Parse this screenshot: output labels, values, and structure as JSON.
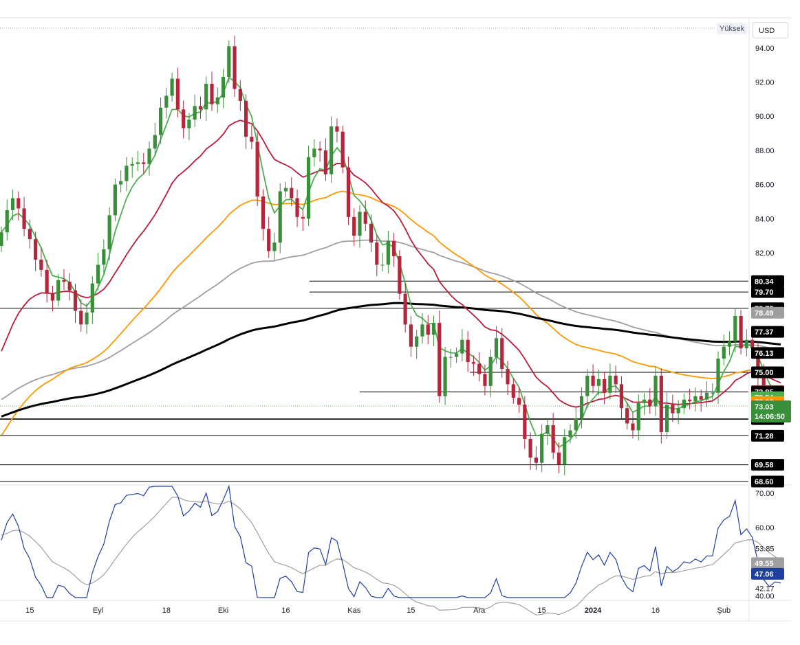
{
  "header": {
    "scale_label": "Yüksek",
    "currency": "USD"
  },
  "colors": {
    "up": "#3a8f3a",
    "down": "#b3263c",
    "ema5": "#4caf50",
    "ema20": "#b71c3c",
    "ema50": "#ff9800",
    "ema100": "#9e9e9e",
    "ema200": "#000000",
    "rsi": "#1e3fa0",
    "rsi_ma": "#a0a0a0"
  },
  "chart_data": [
    {
      "type": "candlestick",
      "title": "",
      "x_ticks": [
        {
          "label": "15",
          "index": 5
        },
        {
          "label": "Eyl",
          "index": 17
        },
        {
          "label": "18",
          "index": 29
        },
        {
          "label": "Eki",
          "index": 39
        },
        {
          "label": "16",
          "index": 50
        },
        {
          "label": "Kas",
          "index": 62
        },
        {
          "label": "15",
          "index": 72
        },
        {
          "label": "Ara",
          "index": 84
        },
        {
          "label": "15",
          "index": 95
        },
        {
          "label": "2024",
          "index": 104
        },
        {
          "label": "16",
          "index": 115
        },
        {
          "label": "Şub",
          "index": 127
        },
        {
          "label": "15",
          "index": 137
        }
      ],
      "y_ticks": [
        94,
        92,
        90,
        88,
        86,
        84,
        82,
        70
      ],
      "ylim": [
        68.4,
        95.2
      ],
      "series_close": [
        83.2,
        84.5,
        85.2,
        84.6,
        83.4,
        82.8,
        81.6,
        81.0,
        79.6,
        79.2,
        80.4,
        80.3,
        79.8,
        78.6,
        77.8,
        78.5,
        80.2,
        81.3,
        82.2,
        84.2,
        86.0,
        86.2,
        87.1,
        87.2,
        87.3,
        87.2,
        88.1,
        88.9,
        90.5,
        91.2,
        92.2,
        90.4,
        89.3,
        89.8,
        90.6,
        90.4,
        91.9,
        90.7,
        91.1,
        92.3,
        94.1,
        91.6,
        90.9,
        88.8,
        88.5,
        85.3,
        83.4,
        82.1,
        82.6,
        85.6,
        85.8,
        85.2,
        84.1,
        84.0,
        87.6,
        88.1,
        88.0,
        86.6,
        89.4,
        89.1,
        87.0,
        84.1,
        83.0,
        84.4,
        83.7,
        82.6,
        81.3,
        81.3,
        82.7,
        81.8,
        79.6,
        77.8,
        76.5,
        77.1,
        77.8,
        77.2,
        77.9,
        73.6,
        75.9,
        75.9,
        76.1,
        76.9,
        75.6,
        75.5,
        74.9,
        74.2,
        75.9,
        77.0,
        75.2,
        74.3,
        73.5,
        73.1,
        71.1,
        70.0,
        69.7,
        71.4,
        71.9,
        70.3,
        69.6,
        71.2,
        71.6,
        72.3,
        73.6,
        74.8,
        74.2,
        74.6,
        73.8,
        74.8,
        74.3,
        72.9,
        72.0,
        71.6,
        73.2,
        73.4,
        73.0,
        74.8,
        71.5,
        73.1,
        72.6,
        72.9,
        73.4,
        73.3,
        73.6,
        73.4,
        73.8,
        73.8,
        75.8,
        76.5,
        76.8,
        78.3,
        76.4,
        76.9,
        76.4,
        74.8,
        73.4,
        72.8,
        73.1,
        73.03
      ],
      "series_open": [
        82.4,
        83.2,
        84.5,
        85.2,
        84.6,
        83.4,
        82.8,
        81.6,
        81.0,
        79.6,
        79.2,
        80.4,
        80.3,
        79.8,
        78.6,
        77.8,
        78.5,
        80.2,
        81.3,
        82.2,
        84.2,
        86.0,
        86.2,
        87.1,
        87.2,
        87.3,
        87.2,
        88.1,
        88.9,
        90.5,
        91.2,
        92.2,
        90.4,
        89.3,
        89.8,
        90.6,
        90.4,
        91.9,
        90.7,
        91.1,
        92.3,
        94.1,
        91.6,
        90.9,
        88.8,
        88.5,
        85.3,
        83.4,
        82.1,
        82.6,
        85.6,
        85.8,
        85.2,
        84.1,
        84.0,
        87.6,
        88.1,
        88.0,
        86.6,
        89.4,
        89.1,
        87.0,
        84.1,
        83.0,
        84.4,
        83.7,
        82.6,
        81.3,
        81.3,
        82.7,
        81.8,
        79.6,
        77.8,
        76.5,
        77.1,
        77.8,
        77.2,
        77.9,
        73.6,
        75.9,
        75.9,
        76.1,
        76.9,
        75.6,
        75.5,
        74.9,
        74.2,
        75.9,
        77.0,
        75.2,
        74.3,
        73.5,
        73.1,
        71.1,
        70.0,
        69.7,
        71.4,
        71.9,
        70.3,
        69.6,
        71.2,
        71.6,
        72.3,
        73.6,
        74.8,
        74.2,
        74.6,
        73.8,
        74.8,
        74.3,
        72.9,
        72.0,
        71.6,
        73.2,
        73.4,
        73.0,
        74.8,
        71.5,
        73.1,
        72.6,
        72.9,
        73.4,
        73.3,
        73.6,
        73.4,
        73.8,
        73.8,
        75.8,
        76.5,
        76.8,
        78.3,
        76.4,
        76.9,
        76.4,
        74.8,
        73.4,
        72.8,
        73.1
      ],
      "levels": [
        80.34,
        79.7,
        78.75,
        77.37,
        76.13,
        75.0,
        73.85,
        72.26,
        71.28,
        69.58,
        68.6
      ],
      "price_tags": [
        {
          "label": "80.34",
          "value": 80.34,
          "color": "#000000"
        },
        {
          "label": "79.70",
          "value": 79.7,
          "color": "#000000"
        },
        {
          "label": "78.75",
          "value": 78.75,
          "color": "#000000"
        },
        {
          "label": "78.49",
          "value": 78.49,
          "color": "#9e9e9e"
        },
        {
          "label": "77.37",
          "value": 77.37,
          "color": "#000000"
        },
        {
          "label": "76.13",
          "value": 76.13,
          "color": "#000000"
        },
        {
          "label": "75.00",
          "value": 75.0,
          "color": "#000000"
        },
        {
          "label": "73.90",
          "value": 73.9,
          "color": "#b71c3c"
        },
        {
          "label": "73.85",
          "value": 73.85,
          "color": "#000000"
        },
        {
          "label": "73.54",
          "value": 73.54,
          "color": "#4caf50"
        },
        {
          "label": "73.26",
          "value": 73.26,
          "color": "#ff9800"
        },
        {
          "label": "72.26",
          "value": 72.26,
          "color": "#000000"
        },
        {
          "label": "71.28",
          "value": 71.28,
          "color": "#000000"
        },
        {
          "label": "69.58",
          "value": 69.58,
          "color": "#000000"
        },
        {
          "label": "68.60",
          "value": 68.6,
          "color": "#000000"
        }
      ],
      "last_price": {
        "label": "73.03",
        "value": 73.03,
        "countdown": "14:06:50"
      }
    },
    {
      "type": "line",
      "title": "",
      "y_ticks": [
        70,
        60,
        40
      ],
      "ylim": [
        39.5,
        72
      ],
      "level_labels": [
        "53.85",
        "42.17"
      ],
      "rsi_tag": {
        "label": "47.06",
        "value": 47.06
      },
      "rsi_ma_tag": {
        "label": "49.55",
        "value": 49.55
      }
    }
  ]
}
